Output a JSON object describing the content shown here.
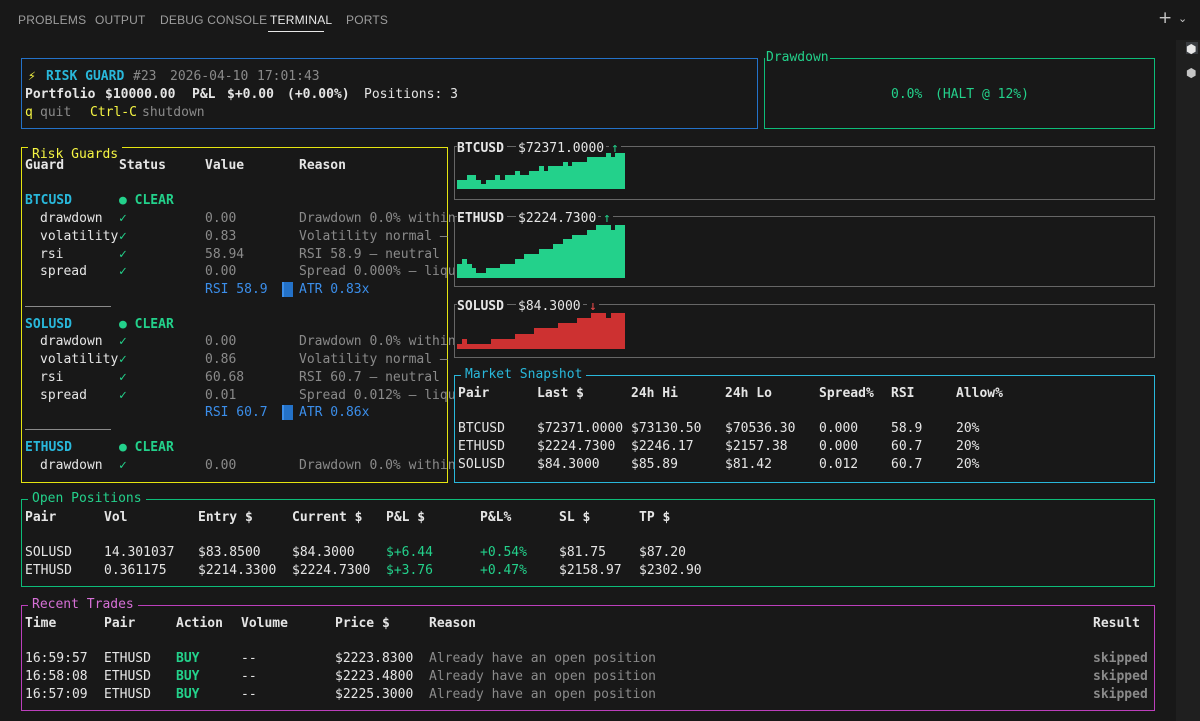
{
  "tabs": [
    {
      "label": "PROBLEMS",
      "active": false
    },
    {
      "label": "OUTPUT",
      "active": false
    },
    {
      "label": "DEBUG CONSOLE",
      "active": false
    },
    {
      "label": "TERMINAL",
      "active": true
    },
    {
      "label": "PORTS",
      "active": false
    }
  ],
  "header": {
    "bolt": "⚡",
    "title": "RISK GUARD",
    "run": "#23",
    "date": "2026-04-10",
    "time": "17:01:43",
    "portfolio_label": "Portfolio",
    "portfolio_value": "$10000.00",
    "pnl_label": "P&L",
    "pnl_value": "$+0.00",
    "pnl_pct": "(+0.00%)",
    "positions": "Positions: 3",
    "quit_key": "q",
    "quit_label": "quit",
    "shutdown_key": "Ctrl-C",
    "shutdown_label": "shutdown"
  },
  "drawdown": {
    "title": "Drawdown",
    "value": "0.0%",
    "halt": "(HALT @ 12%)"
  },
  "risk_guards": {
    "title": "Risk Guards",
    "columns": [
      "Guard",
      "Status",
      "Value",
      "Reason"
    ],
    "pairs": [
      {
        "pair": "BTCUSD",
        "status": "● CLEAR",
        "rows": [
          {
            "guard": "drawdown",
            "check": "✓",
            "value": "0.00",
            "reason": "Drawdown 0.0% within"
          },
          {
            "guard": "volatility",
            "check": "✓",
            "value": "0.83",
            "reason": "Volatility normal –"
          },
          {
            "guard": "rsi",
            "check": "✓",
            "value": "58.94",
            "reason": "RSI 58.9 — neutral"
          },
          {
            "guard": "spread",
            "check": "✓",
            "value": "0.00",
            "reason": "Spread 0.000% — liqu"
          }
        ],
        "rsi_label": "RSI 58.9",
        "atr_label": "ATR 0.83x"
      },
      {
        "pair": "SOLUSD",
        "status": "● CLEAR",
        "rows": [
          {
            "guard": "drawdown",
            "check": "✓",
            "value": "0.00",
            "reason": "Drawdown 0.0% within"
          },
          {
            "guard": "volatility",
            "check": "✓",
            "value": "0.86",
            "reason": "Volatility normal –"
          },
          {
            "guard": "rsi",
            "check": "✓",
            "value": "60.68",
            "reason": "RSI 60.7 — neutral"
          },
          {
            "guard": "spread",
            "check": "✓",
            "value": "0.01",
            "reason": "Spread 0.012% — liqu"
          }
        ],
        "rsi_label": "RSI 60.7",
        "atr_label": "ATR 0.86x"
      },
      {
        "pair": "ETHUSD",
        "status": "● CLEAR",
        "rows": [
          {
            "guard": "drawdown",
            "check": "✓",
            "value": "0.00",
            "reason": "Drawdown 0.0% within"
          }
        ]
      }
    ]
  },
  "sparklines": [
    {
      "pair": "BTCUSD",
      "price": "$72371.0000",
      "arrow": "↑",
      "direction": "up",
      "color": "#23d18b",
      "levels": [
        1,
        1,
        2,
        2,
        1,
        0,
        1,
        1,
        2,
        1,
        2,
        2,
        3,
        2,
        2,
        3,
        3,
        4,
        3,
        4,
        4,
        4,
        5,
        4,
        5,
        5,
        5,
        6,
        6,
        6,
        6,
        7,
        6,
        7,
        7
      ]
    },
    {
      "pair": "ETHUSD",
      "price": "$2224.7300",
      "arrow": "↑",
      "direction": "up",
      "color": "#23d18b",
      "levels": [
        2,
        3,
        2,
        1,
        0,
        0,
        1,
        1,
        1,
        2,
        2,
        2,
        3,
        3,
        4,
        4,
        4,
        5,
        5,
        5,
        6,
        6,
        7,
        7,
        8,
        8,
        8,
        9,
        9,
        10,
        10,
        10,
        9,
        10,
        10
      ]
    },
    {
      "pair": "SOLUSD",
      "price": "$84.3000",
      "arrow": "↓",
      "direction": "down",
      "color": "#cd3131",
      "levels": [
        0,
        1,
        0,
        0,
        0,
        0,
        0,
        1,
        1,
        1,
        1,
        1,
        2,
        2,
        2,
        2,
        3,
        3,
        3,
        3,
        3,
        4,
        4,
        4,
        4,
        5,
        5,
        5,
        6,
        6,
        6,
        5,
        6,
        6,
        6
      ]
    }
  ],
  "market_snapshot": {
    "title": "Market Snapshot",
    "columns": [
      "Pair",
      "Last $",
      "24h Hi",
      "24h Lo",
      "Spread%",
      "RSI",
      "Allow%"
    ],
    "rows": [
      [
        "BTCUSD",
        "$72371.0000",
        "$73130.50",
        "$70536.30",
        "0.000",
        "58.9",
        "20%"
      ],
      [
        "ETHUSD",
        "$2224.7300",
        "$2246.17",
        "$2157.38",
        "0.000",
        "60.7",
        "20%"
      ],
      [
        "SOLUSD",
        "$84.3000",
        "$85.89",
        "$81.42",
        "0.012",
        "60.7",
        "20%"
      ]
    ]
  },
  "open_positions": {
    "title": "Open Positions",
    "columns": [
      "Pair",
      "Vol",
      "Entry $",
      "Current $",
      "P&L $",
      "P&L%",
      "SL $",
      "TP $"
    ],
    "rows": [
      [
        "SOLUSD",
        "14.301037",
        "$83.8500",
        "$84.3000",
        "$+6.44",
        "+0.54%",
        "$81.75",
        "$87.20"
      ],
      [
        "ETHUSD",
        "0.361175",
        "$2214.3300",
        "$2224.7300",
        "$+3.76",
        "+0.47%",
        "$2158.97",
        "$2302.90"
      ]
    ]
  },
  "recent_trades": {
    "title": "Recent Trades",
    "columns": [
      "Time",
      "Pair",
      "Action",
      "Volume",
      "Price $",
      "Reason",
      "Result"
    ],
    "rows": [
      [
        "16:59:57",
        "ETHUSD",
        "BUY",
        "--",
        "$2223.8300",
        "Already have an open position",
        "skipped"
      ],
      [
        "16:58:08",
        "ETHUSD",
        "BUY",
        "--",
        "$2223.4800",
        "Already have an open position",
        "skipped"
      ],
      [
        "16:57:09",
        "ETHUSD",
        "BUY",
        "--",
        "$2225.3000",
        "Already have an open position",
        "skipped"
      ]
    ]
  },
  "colors": {
    "accent_cyan": "#29b8db",
    "green": "#23d18b",
    "red": "#cd3131",
    "yellow": "#e5e510",
    "magenta": "#bc3fbc"
  }
}
